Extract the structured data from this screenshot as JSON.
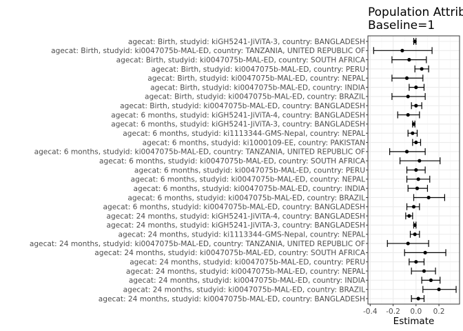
{
  "chart_data": {
    "type": "scatter",
    "title": "Population Attributable",
    "subtitle": "Baseline=1",
    "xlabel": "Estimate",
    "ylabel": "",
    "xlim": [
      -0.42,
      0.38
    ],
    "x_ticks": [
      -0.4,
      -0.2,
      0.0,
      0.2
    ],
    "x_tick_labels": [
      "-0.4",
      "-0.2",
      "0.0",
      "0.2"
    ],
    "grid": true,
    "legend": "none",
    "point_color": "#000000",
    "grid_major_color": "#ebebeb",
    "grid_minor_color": "#f5f5f5",
    "panel_border_color": "#333333",
    "rows": [
      {
        "label": "agecat: Birth, studyid: kiGH5241-JiViTA-3, country: BANGLADESH",
        "estimate": -0.01,
        "lower": -0.02,
        "upper": 0.0
      },
      {
        "label": "agecat: Birth, studyid: ki0047075b-MAL-ED, country: TANZANIA, UNITED REPUBLIC OF",
        "estimate": -0.12,
        "lower": -0.37,
        "upper": 0.14
      },
      {
        "label": "agecat: Birth, studyid: ki0047075b-MAL-ED, country: SOUTH AFRICA",
        "estimate": -0.06,
        "lower": -0.21,
        "upper": 0.09
      },
      {
        "label": "agecat: Birth, studyid: ki0047075b-MAL-ED, country: PERU",
        "estimate": 0.05,
        "lower": -0.01,
        "upper": 0.11
      },
      {
        "label": "agecat: Birth, studyid: ki0047075b-MAL-ED, country: NEPAL",
        "estimate": -0.08,
        "lower": -0.21,
        "upper": 0.06
      },
      {
        "label": "agecat: Birth, studyid: ki0047075b-MAL-ED, country: INDIA",
        "estimate": 0.0,
        "lower": -0.06,
        "upper": 0.07
      },
      {
        "label": "agecat: Birth, studyid: ki0047075b-MAL-ED, country: BRAZIL",
        "estimate": -0.07,
        "lower": -0.21,
        "upper": 0.08
      },
      {
        "label": "agecat: Birth, studyid: ki0047075b-MAL-ED, country: BANGLADESH",
        "estimate": 0.0,
        "lower": -0.04,
        "upper": 0.05
      },
      {
        "label": "agecat: 6 months, studyid: kiGH5241-JiViTA-4, country: BANGLADESH",
        "estimate": -0.07,
        "lower": -0.16,
        "upper": 0.03
      },
      {
        "label": "agecat: 6 months, studyid: kiGH5241-JiViTA-3, country: BANGLADESH",
        "estimate": -0.02,
        "lower": -0.03,
        "upper": -0.01
      },
      {
        "label": "agecat: 6 months, studyid: ki1113344-GMS-Nepal, country: NEPAL",
        "estimate": -0.03,
        "lower": -0.07,
        "upper": 0.01
      },
      {
        "label": "agecat: 6 months, studyid: ki1000109-EE, country: PAKISTAN",
        "estimate": 0.0,
        "lower": -0.03,
        "upper": 0.04
      },
      {
        "label": "agecat: 6 months, studyid: ki0047075b-MAL-ED, country: TANZANIA, UNITED REPUBLIC OF",
        "estimate": -0.08,
        "lower": -0.23,
        "upper": 0.08
      },
      {
        "label": "agecat: 6 months, studyid: ki0047075b-MAL-ED, country: SOUTH AFRICA",
        "estimate": 0.03,
        "lower": -0.14,
        "upper": 0.21
      },
      {
        "label": "agecat: 6 months, studyid: ki0047075b-MAL-ED, country: PERU",
        "estimate": 0.0,
        "lower": -0.08,
        "upper": 0.08
      },
      {
        "label": "agecat: 6 months, studyid: ki0047075b-MAL-ED, country: NEPAL",
        "estimate": 0.02,
        "lower": -0.08,
        "upper": 0.12
      },
      {
        "label": "agecat: 6 months, studyid: ki0047075b-MAL-ED, country: INDIA",
        "estimate": 0.01,
        "lower": -0.07,
        "upper": 0.1
      },
      {
        "label": "agecat: 6 months, studyid: ki0047075b-MAL-ED, country: BRAZIL",
        "estimate": 0.11,
        "lower": -0.02,
        "upper": 0.25
      },
      {
        "label": "agecat: 6 months, studyid: ki0047075b-MAL-ED, country: BANGLADESH",
        "estimate": -0.02,
        "lower": -0.08,
        "upper": 0.03
      },
      {
        "label": "agecat: 24 months, studyid: kiGH5241-JiViTA-4, country: BANGLADESH",
        "estimate": -0.06,
        "lower": -0.09,
        "upper": -0.03
      },
      {
        "label": "agecat: 24 months, studyid: kiGH5241-JiViTA-3, country: BANGLADESH",
        "estimate": -0.01,
        "lower": -0.02,
        "upper": 0.0
      },
      {
        "label": "agecat: 24 months, studyid: ki1113344-GMS-Nepal, country: NEPAL",
        "estimate": -0.01,
        "lower": -0.05,
        "upper": 0.03
      },
      {
        "label": "agecat: 24 months, studyid: ki0047075b-MAL-ED, country: TANZANIA, UNITED REPUBLIC OF",
        "estimate": -0.07,
        "lower": -0.25,
        "upper": 0.11
      },
      {
        "label": "agecat: 24 months, studyid: ki0047075b-MAL-ED, country: SOUTH AFRICA",
        "estimate": 0.08,
        "lower": -0.1,
        "upper": 0.26
      },
      {
        "label": "agecat: 24 months, studyid: ki0047075b-MAL-ED, country: PERU",
        "estimate": 0.0,
        "lower": -0.06,
        "upper": 0.07
      },
      {
        "label": "agecat: 24 months, studyid: ki0047075b-MAL-ED, country: NEPAL",
        "estimate": 0.07,
        "lower": -0.04,
        "upper": 0.17
      },
      {
        "label": "agecat: 24 months, studyid: ki0047075b-MAL-ED, country: INDIA",
        "estimate": 0.13,
        "lower": 0.05,
        "upper": 0.21
      },
      {
        "label": "agecat: 24 months, studyid: ki0047075b-MAL-ED, country: BRAZIL",
        "estimate": 0.2,
        "lower": 0.06,
        "upper": 0.35
      },
      {
        "label": "agecat: 24 months, studyid: ki0047075b-MAL-ED, country: BANGLADESH",
        "estimate": 0.02,
        "lower": -0.04,
        "upper": 0.07
      }
    ]
  }
}
